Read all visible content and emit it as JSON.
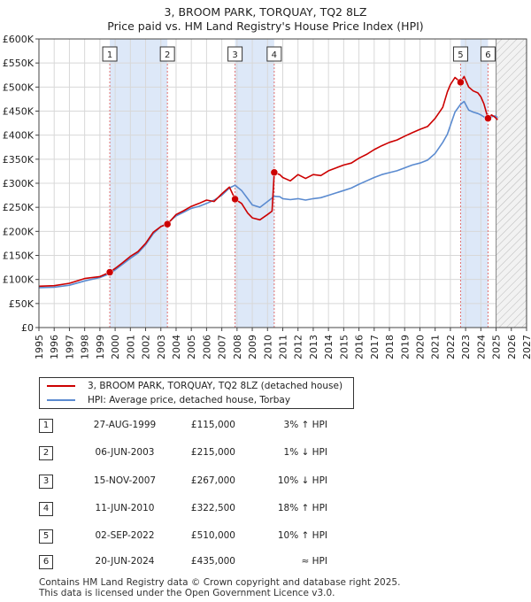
{
  "title": {
    "line1": "3, BROOM PARK, TORQUAY, TQ2 8LZ",
    "line2": "Price paid vs. HM Land Registry's House Price Index (HPI)"
  },
  "colors": {
    "property": "#cc0000",
    "hpi": "#5b8bd0",
    "shade": "#dde8f8",
    "hatch": "#b0b0b0",
    "grid": "#d8d8d8",
    "marker_line": "#e07070"
  },
  "legend": {
    "property_label": "3, BROOM PARK, TORQUAY, TQ2 8LZ (detached house)",
    "hpi_label": "HPI: Average price, detached house, Torbay"
  },
  "sales": [
    {
      "num": "1",
      "date": "27-AUG-1999",
      "price": "£115,000",
      "hpi": "3% ↑ HPI"
    },
    {
      "num": "2",
      "date": "06-JUN-2003",
      "price": "£215,000",
      "hpi": "1% ↓ HPI"
    },
    {
      "num": "3",
      "date": "15-NOV-2007",
      "price": "£267,000",
      "hpi": "10% ↓ HPI"
    },
    {
      "num": "4",
      "date": "11-JUN-2010",
      "price": "£322,500",
      "hpi": "18% ↑ HPI"
    },
    {
      "num": "5",
      "date": "02-SEP-2022",
      "price": "£510,000",
      "hpi": "10% ↑ HPI"
    },
    {
      "num": "6",
      "date": "20-JUN-2024",
      "price": "£435,000",
      "hpi": "≈ HPI"
    }
  ],
  "footer": {
    "line1": "Contains HM Land Registry data © Crown copyright and database right 2025.",
    "line2": "This data is licensed under the Open Government Licence v3.0."
  },
  "chart_data": {
    "type": "line",
    "title": "3, BROOM PARK, TORQUAY, TQ2 8LZ — Price paid vs. HM Land Registry's House Price Index (HPI)",
    "xlabel": "",
    "ylabel": "",
    "xlim": [
      1995,
      2027
    ],
    "ylim": [
      0,
      600000
    ],
    "x_ticks": [
      "1995",
      "1996",
      "1997",
      "1998",
      "1999",
      "2000",
      "2001",
      "2002",
      "2003",
      "2004",
      "2005",
      "2006",
      "2007",
      "2008",
      "2009",
      "2010",
      "2011",
      "2012",
      "2013",
      "2014",
      "2015",
      "2016",
      "2017",
      "2018",
      "2019",
      "2020",
      "2021",
      "2022",
      "2023",
      "2024",
      "2025",
      "2026",
      "2027"
    ],
    "y_ticks": [
      {
        "v": 0,
        "label": "£0"
      },
      {
        "v": 50000,
        "label": "£50K"
      },
      {
        "v": 100000,
        "label": "£100K"
      },
      {
        "v": 150000,
        "label": "£150K"
      },
      {
        "v": 200000,
        "label": "£200K"
      },
      {
        "v": 250000,
        "label": "£250K"
      },
      {
        "v": 300000,
        "label": "£300K"
      },
      {
        "v": 350000,
        "label": "£350K"
      },
      {
        "v": 400000,
        "label": "£400K"
      },
      {
        "v": 450000,
        "label": "£450K"
      },
      {
        "v": 500000,
        "label": "£500K"
      },
      {
        "v": 550000,
        "label": "£550K"
      },
      {
        "v": 600000,
        "label": "£600K"
      }
    ],
    "shaded_periods": [
      [
        1999.65,
        2003.43
      ],
      [
        2007.87,
        2010.44
      ],
      [
        2022.67,
        2024.47
      ]
    ],
    "future_from": 2025.0,
    "sale_points": [
      {
        "label": "1",
        "x": 1999.65,
        "y": 115000
      },
      {
        "label": "2",
        "x": 2003.43,
        "y": 215000
      },
      {
        "label": "3",
        "x": 2007.87,
        "y": 267000
      },
      {
        "label": "4",
        "x": 2010.44,
        "y": 322500
      },
      {
        "label": "5",
        "x": 2022.67,
        "y": 510000
      },
      {
        "label": "6",
        "x": 2024.47,
        "y": 435000
      }
    ],
    "series": [
      {
        "name": "3, BROOM PARK, TORQUAY, TQ2 8LZ (detached house)",
        "color": "#cc0000",
        "points": [
          [
            1995.0,
            86000
          ],
          [
            1996.0,
            87000
          ],
          [
            1997.0,
            92000
          ],
          [
            1998.0,
            102000
          ],
          [
            1999.0,
            106000
          ],
          [
            1999.65,
            115000
          ],
          [
            2000.0,
            123000
          ],
          [
            2000.5,
            135000
          ],
          [
            2001.0,
            148000
          ],
          [
            2001.5,
            158000
          ],
          [
            2002.0,
            175000
          ],
          [
            2002.5,
            198000
          ],
          [
            2003.0,
            210000
          ],
          [
            2003.43,
            215000
          ],
          [
            2004.0,
            235000
          ],
          [
            2004.5,
            243000
          ],
          [
            2005.0,
            252000
          ],
          [
            2005.5,
            258000
          ],
          [
            2006.0,
            265000
          ],
          [
            2006.5,
            262000
          ],
          [
            2007.0,
            278000
          ],
          [
            2007.5,
            292000
          ],
          [
            2007.87,
            267000
          ],
          [
            2008.3,
            258000
          ],
          [
            2008.7,
            238000
          ],
          [
            2009.0,
            228000
          ],
          [
            2009.5,
            224000
          ],
          [
            2010.0,
            235000
          ],
          [
            2010.3,
            242000
          ],
          [
            2010.44,
            322500
          ],
          [
            2010.8,
            318000
          ],
          [
            2011.0,
            312000
          ],
          [
            2011.5,
            305000
          ],
          [
            2012.0,
            318000
          ],
          [
            2012.5,
            310000
          ],
          [
            2013.0,
            318000
          ],
          [
            2013.5,
            316000
          ],
          [
            2014.0,
            326000
          ],
          [
            2014.5,
            332000
          ],
          [
            2015.0,
            338000
          ],
          [
            2015.5,
            342000
          ],
          [
            2016.0,
            352000
          ],
          [
            2016.5,
            360000
          ],
          [
            2017.0,
            370000
          ],
          [
            2017.5,
            378000
          ],
          [
            2018.0,
            385000
          ],
          [
            2018.5,
            390000
          ],
          [
            2019.0,
            398000
          ],
          [
            2019.5,
            405000
          ],
          [
            2020.0,
            412000
          ],
          [
            2020.5,
            418000
          ],
          [
            2021.0,
            435000
          ],
          [
            2021.5,
            458000
          ],
          [
            2021.8,
            490000
          ],
          [
            2022.0,
            505000
          ],
          [
            2022.3,
            520000
          ],
          [
            2022.67,
            510000
          ],
          [
            2022.9,
            522000
          ],
          [
            2023.2,
            500000
          ],
          [
            2023.5,
            492000
          ],
          [
            2023.8,
            488000
          ],
          [
            2024.0,
            480000
          ],
          [
            2024.2,
            465000
          ],
          [
            2024.47,
            435000
          ],
          [
            2024.7,
            442000
          ],
          [
            2024.9,
            438000
          ],
          [
            2025.1,
            432000
          ]
        ]
      },
      {
        "name": "HPI: Average price, detached house, Torbay",
        "color": "#5b8bd0",
        "points": [
          [
            1995.0,
            83000
          ],
          [
            1996.0,
            84000
          ],
          [
            1997.0,
            88000
          ],
          [
            1998.0,
            97000
          ],
          [
            1999.0,
            104000
          ],
          [
            1999.65,
            112000
          ],
          [
            2000.0,
            120000
          ],
          [
            2000.5,
            132000
          ],
          [
            2001.0,
            144000
          ],
          [
            2001.5,
            155000
          ],
          [
            2002.0,
            172000
          ],
          [
            2002.5,
            195000
          ],
          [
            2003.0,
            210000
          ],
          [
            2003.43,
            217000
          ],
          [
            2004.0,
            232000
          ],
          [
            2004.5,
            240000
          ],
          [
            2005.0,
            248000
          ],
          [
            2005.5,
            252000
          ],
          [
            2006.0,
            258000
          ],
          [
            2006.5,
            265000
          ],
          [
            2007.0,
            275000
          ],
          [
            2007.5,
            290000
          ],
          [
            2007.87,
            296000
          ],
          [
            2008.3,
            285000
          ],
          [
            2008.7,
            268000
          ],
          [
            2009.0,
            255000
          ],
          [
            2009.5,
            250000
          ],
          [
            2010.0,
            262000
          ],
          [
            2010.44,
            273000
          ],
          [
            2010.8,
            272000
          ],
          [
            2011.0,
            268000
          ],
          [
            2011.5,
            266000
          ],
          [
            2012.0,
            268000
          ],
          [
            2012.5,
            265000
          ],
          [
            2013.0,
            268000
          ],
          [
            2013.5,
            270000
          ],
          [
            2014.0,
            275000
          ],
          [
            2014.5,
            280000
          ],
          [
            2015.0,
            285000
          ],
          [
            2015.5,
            290000
          ],
          [
            2016.0,
            298000
          ],
          [
            2016.5,
            305000
          ],
          [
            2017.0,
            312000
          ],
          [
            2017.5,
            318000
          ],
          [
            2018.0,
            322000
          ],
          [
            2018.5,
            326000
          ],
          [
            2019.0,
            332000
          ],
          [
            2019.5,
            338000
          ],
          [
            2020.0,
            342000
          ],
          [
            2020.5,
            348000
          ],
          [
            2021.0,
            362000
          ],
          [
            2021.5,
            385000
          ],
          [
            2021.8,
            402000
          ],
          [
            2022.0,
            420000
          ],
          [
            2022.3,
            448000
          ],
          [
            2022.67,
            464000
          ],
          [
            2022.9,
            470000
          ],
          [
            2023.2,
            452000
          ],
          [
            2023.5,
            448000
          ],
          [
            2023.8,
            445000
          ],
          [
            2024.0,
            442000
          ],
          [
            2024.2,
            438000
          ],
          [
            2024.47,
            433000
          ],
          [
            2024.7,
            438000
          ],
          [
            2024.9,
            440000
          ],
          [
            2025.1,
            437000
          ]
        ]
      }
    ]
  }
}
